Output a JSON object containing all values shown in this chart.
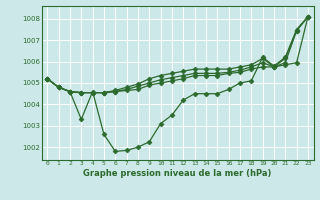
{
  "xlabel": "Graphe pression niveau de la mer (hPa)",
  "bg_color": "#cce8e8",
  "grid_color": "#ffffff",
  "line_color": "#2d6a2d",
  "marker": "D",
  "markersize": 2.5,
  "linewidth": 0.9,
  "xlim": [
    -0.5,
    23.5
  ],
  "ylim": [
    1001.4,
    1008.6
  ],
  "yticks": [
    1002,
    1003,
    1004,
    1005,
    1006,
    1007,
    1008
  ],
  "xticks": [
    0,
    1,
    2,
    3,
    4,
    5,
    6,
    7,
    8,
    9,
    10,
    11,
    12,
    13,
    14,
    15,
    16,
    17,
    18,
    19,
    20,
    21,
    22,
    23
  ],
  "lines": [
    [
      1005.2,
      1004.8,
      1004.6,
      1003.3,
      1004.6,
      1002.6,
      1001.8,
      1001.85,
      1002.0,
      1002.25,
      1003.1,
      1003.5,
      1004.2,
      1004.5,
      1004.5,
      1004.5,
      1004.7,
      1005.0,
      1005.1,
      1006.2,
      1005.8,
      1006.2,
      1007.5,
      1008.1
    ],
    [
      1005.2,
      1004.8,
      1004.6,
      1004.55,
      1004.55,
      1004.55,
      1004.6,
      1004.65,
      1004.7,
      1004.9,
      1005.0,
      1005.1,
      1005.2,
      1005.35,
      1005.35,
      1005.35,
      1005.45,
      1005.5,
      1005.65,
      1005.75,
      1005.75,
      1005.85,
      1005.95,
      1008.1
    ],
    [
      1005.2,
      1004.8,
      1004.6,
      1004.55,
      1004.55,
      1004.55,
      1004.6,
      1004.7,
      1004.85,
      1005.0,
      1005.15,
      1005.25,
      1005.35,
      1005.45,
      1005.45,
      1005.45,
      1005.5,
      1005.6,
      1005.75,
      1005.95,
      1005.75,
      1005.95,
      1007.45,
      1008.1
    ],
    [
      1005.2,
      1004.8,
      1004.6,
      1004.55,
      1004.55,
      1004.55,
      1004.65,
      1004.8,
      1004.95,
      1005.2,
      1005.35,
      1005.45,
      1005.55,
      1005.65,
      1005.65,
      1005.65,
      1005.65,
      1005.75,
      1005.85,
      1006.15,
      1005.75,
      1006.15,
      1007.45,
      1008.1
    ]
  ]
}
